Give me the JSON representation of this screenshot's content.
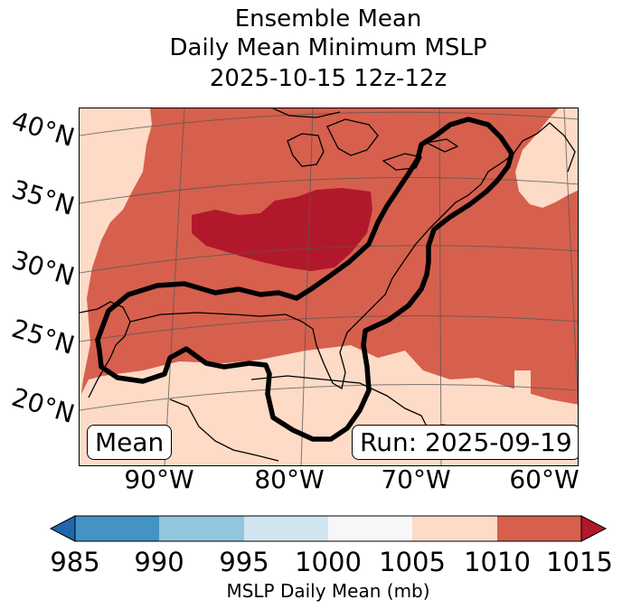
{
  "title": {
    "line1": "Ensemble Mean",
    "line2": "Daily Mean Minimum MSLP",
    "line3": "2025-10-15 12z-12z"
  },
  "map": {
    "lat_labels": [
      "40°N",
      "35°N",
      "30°N",
      "25°N",
      "20°N"
    ],
    "lon_labels": [
      "90°W",
      "80°W",
      "70°W",
      "60°W"
    ],
    "mean_box": "Mean",
    "run_box": "Run: 2025-09-19",
    "colors": {
      "very_high": "#b2182b",
      "high": "#d6604d",
      "mid_high": "#fddbc7",
      "contour": "#000000",
      "coast": "#000000",
      "grid": "#555555"
    }
  },
  "colorbar": {
    "label": "MSLP Daily Mean (mb)",
    "ticks": [
      "985",
      "990",
      "995",
      "1000",
      "1005",
      "1010",
      "1015"
    ],
    "colors": [
      "#2166ac",
      "#4393c3",
      "#92c5de",
      "#d1e5f0",
      "#f7f7f7",
      "#fddbc7",
      "#d6604d",
      "#b2182b"
    ]
  }
}
